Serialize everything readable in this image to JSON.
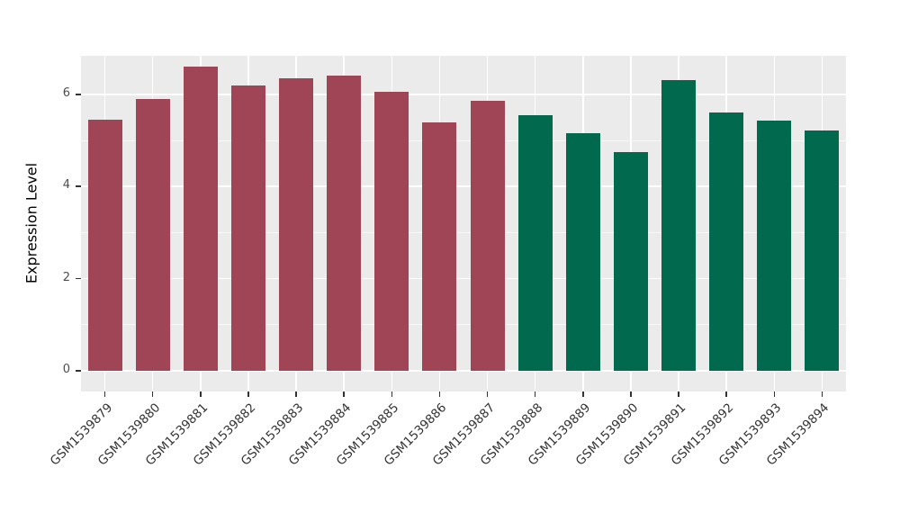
{
  "chart_data": {
    "type": "bar",
    "title": "",
    "xlabel": "",
    "ylabel": "Expression Level",
    "ylim": [
      0,
      6.85
    ],
    "yticks": [
      0,
      2,
      4,
      6
    ],
    "yticks_minor": [
      1,
      3,
      5
    ],
    "grid": "on",
    "legend": "none",
    "panel_bg": "#EBEBEB",
    "grid_color": "#FFFFFF",
    "axis_text_color": "#4d4d4d",
    "categories": [
      "GSM1539879",
      "GSM1539880",
      "GSM1539881",
      "GSM1539882",
      "GSM1539883",
      "GSM1539884",
      "GSM1539885",
      "GSM1539886",
      "GSM1539887",
      "GSM1539888",
      "GSM1539889",
      "GSM1539890",
      "GSM1539891",
      "GSM1539892",
      "GSM1539893",
      "GSM1539894"
    ],
    "values": [
      5.45,
      5.9,
      6.6,
      6.2,
      6.35,
      6.4,
      6.05,
      5.4,
      5.85,
      5.55,
      5.15,
      4.75,
      6.3,
      5.6,
      5.42,
      5.22
    ],
    "group_colors": {
      "maroon_group": "#A04556",
      "green_group": "#01694D"
    },
    "bar_colors": [
      "#A04556",
      "#A04556",
      "#A04556",
      "#A04556",
      "#A04556",
      "#A04556",
      "#A04556",
      "#A04556",
      "#A04556",
      "#01694D",
      "#01694D",
      "#01694D",
      "#01694D",
      "#01694D",
      "#01694D",
      "#01694D"
    ]
  }
}
